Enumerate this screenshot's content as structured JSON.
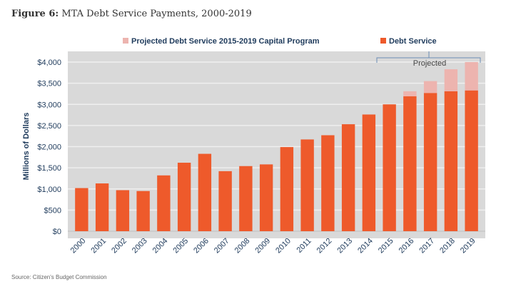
{
  "title_prefix": "Figure 6:",
  "title_text": "MTA Debt Service Payments, 2000-2019",
  "source": "Source: Citizen's Budget Commission",
  "chart_data": {
    "type": "bar",
    "stacked": true,
    "ylabel": "Millions of Dollars",
    "ylim": [
      0,
      4000
    ],
    "yticks": [
      0,
      500,
      1000,
      1500,
      2000,
      2500,
      3000,
      3500,
      4000
    ],
    "ytick_labels": [
      "$0",
      "$500",
      "$1,000",
      "$1,500",
      "$2,000",
      "$2,500",
      "$3,000",
      "$3,500",
      "$4,000"
    ],
    "grid": true,
    "legend_position": "top",
    "annotation": "Projected",
    "categories": [
      "2000",
      "2001",
      "2002",
      "2003",
      "2004",
      "2005",
      "2006",
      "2007",
      "2008",
      "2009",
      "2010",
      "2011",
      "2012",
      "2013",
      "2014",
      "2015",
      "2016",
      "2017",
      "2018",
      "2019"
    ],
    "series": [
      {
        "name": "Debt Service",
        "color": "#EE5A2B",
        "values": [
          1020,
          1130,
          970,
          950,
          1320,
          1620,
          1830,
          1420,
          1540,
          1580,
          1990,
          2170,
          2270,
          2530,
          2760,
          3000,
          3190,
          3270,
          3310,
          3330
        ]
      },
      {
        "name": "Projected Debt Service 2015-2019 Capital Program",
        "color": "#EDB4AF",
        "values": [
          0,
          0,
          0,
          0,
          0,
          0,
          0,
          0,
          0,
          0,
          0,
          0,
          0,
          0,
          0,
          0,
          120,
          280,
          520,
          670
        ]
      }
    ]
  }
}
